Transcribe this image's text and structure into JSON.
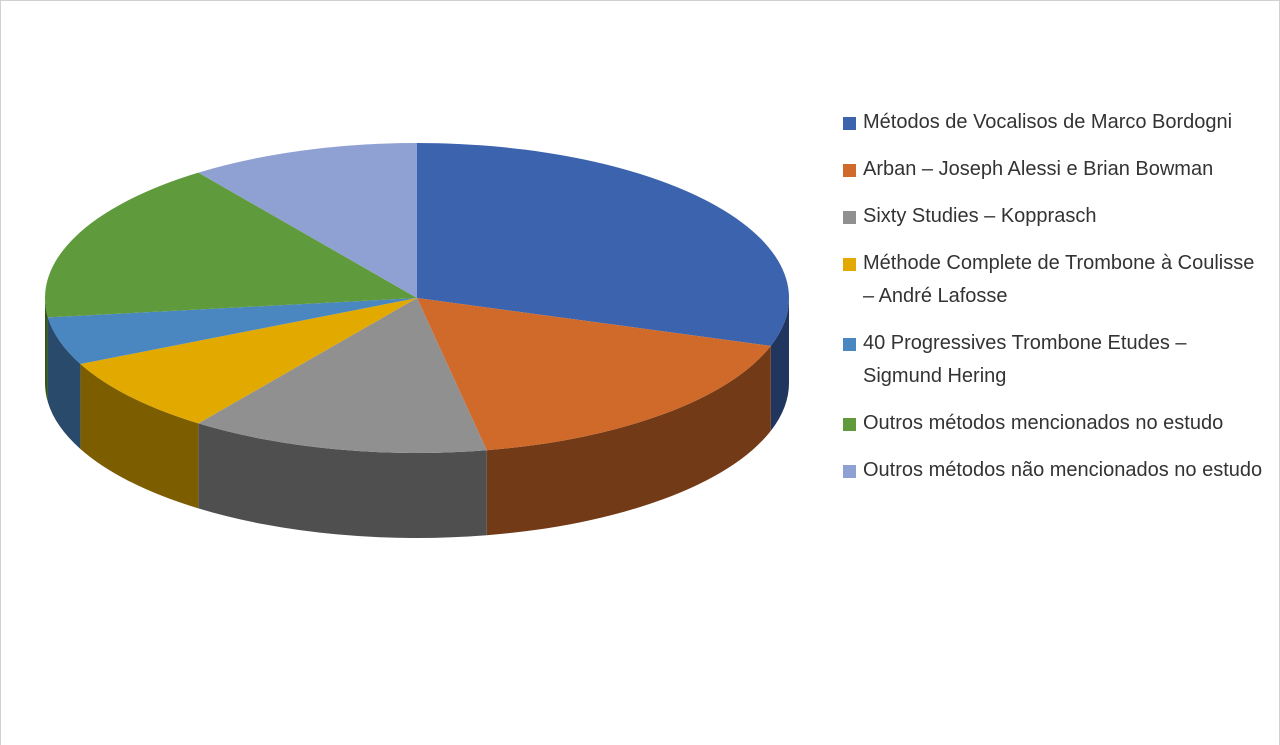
{
  "chart_data": {
    "type": "pie3d",
    "categories": [
      "Métodos de Vocalisos de Marco Bordogni",
      "Arban – Joseph Alessi e Brian Bowman",
      "Sixty Studies – Kopprasch",
      "Méthode Complete de Trombone à Coulisse – André Lafosse",
      "40 Progressives Trombone Etudes – Sigmund Hering",
      "Outros métodos mencionados no estudo",
      "Outros métodos não mencionados no estudo"
    ],
    "values": [
      30,
      17,
      13,
      8,
      5,
      17,
      10
    ],
    "colors": [
      "#3c63ad",
      "#d06a2a",
      "#909090",
      "#e2a900",
      "#4a86c0",
      "#5f9a3c",
      "#8fa1d3"
    ],
    "legend": "right"
  }
}
